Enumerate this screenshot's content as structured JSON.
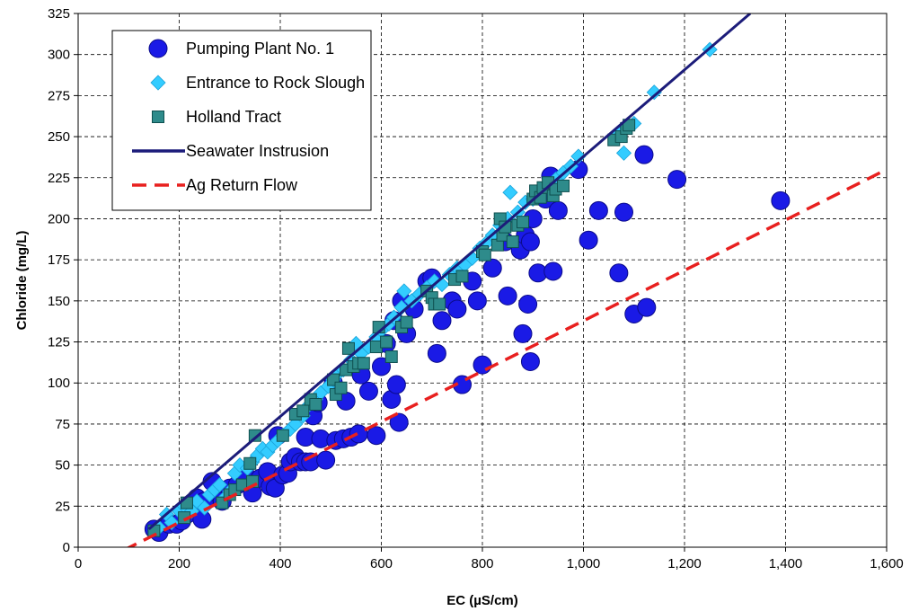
{
  "chart_data": {
    "type": "scatter",
    "xlabel": "EC (µS/cm)",
    "ylabel": "Chloride (mg/L)",
    "xlim": [
      0,
      1600
    ],
    "ylim": [
      0,
      325
    ],
    "x_ticks": [
      0,
      200,
      400,
      600,
      800,
      1000,
      1200,
      1400,
      1600
    ],
    "x_tick_labels": [
      "0",
      "200",
      "400",
      "600",
      "800",
      "1,000",
      "1,200",
      "1,400",
      "1,600"
    ],
    "y_ticks": [
      0,
      25,
      50,
      75,
      100,
      125,
      150,
      175,
      200,
      225,
      250,
      275,
      300,
      325
    ],
    "y_tick_labels": [
      "0",
      "25",
      "50",
      "75",
      "100",
      "125",
      "150",
      "175",
      "200",
      "225",
      "250",
      "275",
      "300",
      "325"
    ],
    "grid": true,
    "legend_position": "top-left",
    "series": [
      {
        "name": "Pumping Plant No. 1",
        "marker": "circle",
        "color": "#1a1ae6",
        "points": [
          [
            150,
            11
          ],
          [
            160,
            9
          ],
          [
            180,
            14
          ],
          [
            195,
            14
          ],
          [
            205,
            16
          ],
          [
            215,
            20
          ],
          [
            225,
            24
          ],
          [
            235,
            30
          ],
          [
            245,
            17
          ],
          [
            250,
            28
          ],
          [
            265,
            40
          ],
          [
            275,
            33
          ],
          [
            285,
            28
          ],
          [
            300,
            36
          ],
          [
            315,
            38
          ],
          [
            330,
            45
          ],
          [
            345,
            33
          ],
          [
            360,
            42
          ],
          [
            375,
            46
          ],
          [
            380,
            37
          ],
          [
            390,
            36
          ],
          [
            395,
            68
          ],
          [
            405,
            44
          ],
          [
            415,
            45
          ],
          [
            420,
            52
          ],
          [
            430,
            55
          ],
          [
            440,
            52
          ],
          [
            450,
            52
          ],
          [
            460,
            52
          ],
          [
            450,
            67
          ],
          [
            465,
            80
          ],
          [
            475,
            88
          ],
          [
            480,
            66
          ],
          [
            490,
            53
          ],
          [
            505,
            100
          ],
          [
            510,
            65
          ],
          [
            525,
            66
          ],
          [
            530,
            89
          ],
          [
            540,
            67
          ],
          [
            555,
            69
          ],
          [
            560,
            105
          ],
          [
            575,
            95
          ],
          [
            590,
            68
          ],
          [
            600,
            110
          ],
          [
            610,
            124
          ],
          [
            620,
            90
          ],
          [
            625,
            138
          ],
          [
            630,
            99
          ],
          [
            635,
            76
          ],
          [
            640,
            150
          ],
          [
            650,
            130
          ],
          [
            665,
            145
          ],
          [
            690,
            162
          ],
          [
            700,
            164
          ],
          [
            710,
            118
          ],
          [
            720,
            138
          ],
          [
            740,
            150
          ],
          [
            750,
            145
          ],
          [
            760,
            99
          ],
          [
            780,
            162
          ],
          [
            790,
            150
          ],
          [
            800,
            111
          ],
          [
            820,
            170
          ],
          [
            845,
            186
          ],
          [
            850,
            153
          ],
          [
            875,
            181
          ],
          [
            880,
            130
          ],
          [
            885,
            190
          ],
          [
            890,
            148
          ],
          [
            895,
            113
          ],
          [
            895,
            186
          ],
          [
            900,
            200
          ],
          [
            910,
            167
          ],
          [
            925,
            212
          ],
          [
            935,
            226
          ],
          [
            940,
            168
          ],
          [
            950,
            205
          ],
          [
            990,
            230
          ],
          [
            1010,
            187
          ],
          [
            1030,
            205
          ],
          [
            1070,
            167
          ],
          [
            1080,
            204
          ],
          [
            1100,
            142
          ],
          [
            1120,
            239
          ],
          [
            1125,
            146
          ],
          [
            1185,
            224
          ],
          [
            1390,
            211
          ]
        ]
      },
      {
        "name": "Entrance to Rock Slough",
        "marker": "diamond",
        "color": "#33ccff",
        "points": [
          [
            160,
            12
          ],
          [
            175,
            20
          ],
          [
            185,
            15
          ],
          [
            200,
            22
          ],
          [
            210,
            25
          ],
          [
            225,
            22
          ],
          [
            235,
            28
          ],
          [
            250,
            24
          ],
          [
            260,
            32
          ],
          [
            270,
            35
          ],
          [
            280,
            38
          ],
          [
            290,
            30
          ],
          [
            300,
            34
          ],
          [
            310,
            45
          ],
          [
            320,
            50
          ],
          [
            335,
            48
          ],
          [
            345,
            52
          ],
          [
            355,
            56
          ],
          [
            365,
            60
          ],
          [
            375,
            58
          ],
          [
            385,
            62
          ],
          [
            395,
            65
          ],
          [
            405,
            68
          ],
          [
            420,
            72
          ],
          [
            430,
            75
          ],
          [
            445,
            80
          ],
          [
            455,
            86
          ],
          [
            470,
            90
          ],
          [
            480,
            94
          ],
          [
            495,
            98
          ],
          [
            505,
            102
          ],
          [
            515,
            106
          ],
          [
            525,
            108
          ],
          [
            540,
            114
          ],
          [
            550,
            124
          ],
          [
            560,
            118
          ],
          [
            575,
            122
          ],
          [
            590,
            128
          ],
          [
            600,
            132
          ],
          [
            615,
            136
          ],
          [
            625,
            140
          ],
          [
            640,
            146
          ],
          [
            645,
            156
          ],
          [
            660,
            150
          ],
          [
            675,
            154
          ],
          [
            690,
            158
          ],
          [
            705,
            162
          ],
          [
            720,
            160
          ],
          [
            735,
            166
          ],
          [
            750,
            170
          ],
          [
            765,
            172
          ],
          [
            780,
            176
          ],
          [
            795,
            182
          ],
          [
            810,
            186
          ],
          [
            820,
            190
          ],
          [
            835,
            196
          ],
          [
            850,
            200
          ],
          [
            855,
            216
          ],
          [
            870,
            204
          ],
          [
            885,
            210
          ],
          [
            900,
            212
          ],
          [
            915,
            216
          ],
          [
            930,
            220
          ],
          [
            945,
            224
          ],
          [
            960,
            228
          ],
          [
            975,
            232
          ],
          [
            990,
            238
          ],
          [
            1070,
            252
          ],
          [
            1080,
            240
          ],
          [
            1085,
            256
          ],
          [
            1100,
            258
          ],
          [
            1140,
            277
          ],
          [
            1250,
            303
          ]
        ]
      },
      {
        "name": "Holland Tract",
        "marker": "square",
        "color": "#2e8b8b",
        "points": [
          [
            150,
            10
          ],
          [
            210,
            18
          ],
          [
            215,
            27
          ],
          [
            285,
            27
          ],
          [
            300,
            32
          ],
          [
            310,
            35
          ],
          [
            325,
            38
          ],
          [
            340,
            51
          ],
          [
            345,
            40
          ],
          [
            350,
            68
          ],
          [
            405,
            68
          ],
          [
            430,
            81
          ],
          [
            445,
            83
          ],
          [
            460,
            90
          ],
          [
            470,
            87
          ],
          [
            505,
            102
          ],
          [
            510,
            93
          ],
          [
            520,
            97
          ],
          [
            530,
            108
          ],
          [
            535,
            121
          ],
          [
            545,
            110
          ],
          [
            555,
            112
          ],
          [
            565,
            112
          ],
          [
            590,
            122
          ],
          [
            595,
            134
          ],
          [
            610,
            125
          ],
          [
            620,
            116
          ],
          [
            640,
            134
          ],
          [
            650,
            137
          ],
          [
            690,
            156
          ],
          [
            700,
            152
          ],
          [
            705,
            148
          ],
          [
            715,
            148
          ],
          [
            745,
            163
          ],
          [
            760,
            165
          ],
          [
            800,
            180
          ],
          [
            805,
            178
          ],
          [
            830,
            184
          ],
          [
            835,
            200
          ],
          [
            840,
            190
          ],
          [
            845,
            195
          ],
          [
            860,
            186
          ],
          [
            870,
            196
          ],
          [
            880,
            198
          ],
          [
            900,
            212
          ],
          [
            905,
            217
          ],
          [
            915,
            213
          ],
          [
            920,
            219
          ],
          [
            930,
            222
          ],
          [
            940,
            214
          ],
          [
            945,
            218
          ],
          [
            960,
            220
          ],
          [
            1060,
            248
          ],
          [
            1075,
            250
          ],
          [
            1085,
            255
          ],
          [
            1090,
            257
          ]
        ]
      },
      {
        "name": "Seawater Instrusion",
        "marker": "line",
        "color": "#1c1c7a",
        "style": "solid",
        "points": [
          [
            140,
            11
          ],
          [
            1330,
            325
          ]
        ]
      },
      {
        "name": "Ag Return Flow",
        "marker": "line",
        "color": "#e8201f",
        "style": "dashed",
        "points": [
          [
            50,
            -8
          ],
          [
            1600,
            230
          ]
        ]
      }
    ]
  }
}
